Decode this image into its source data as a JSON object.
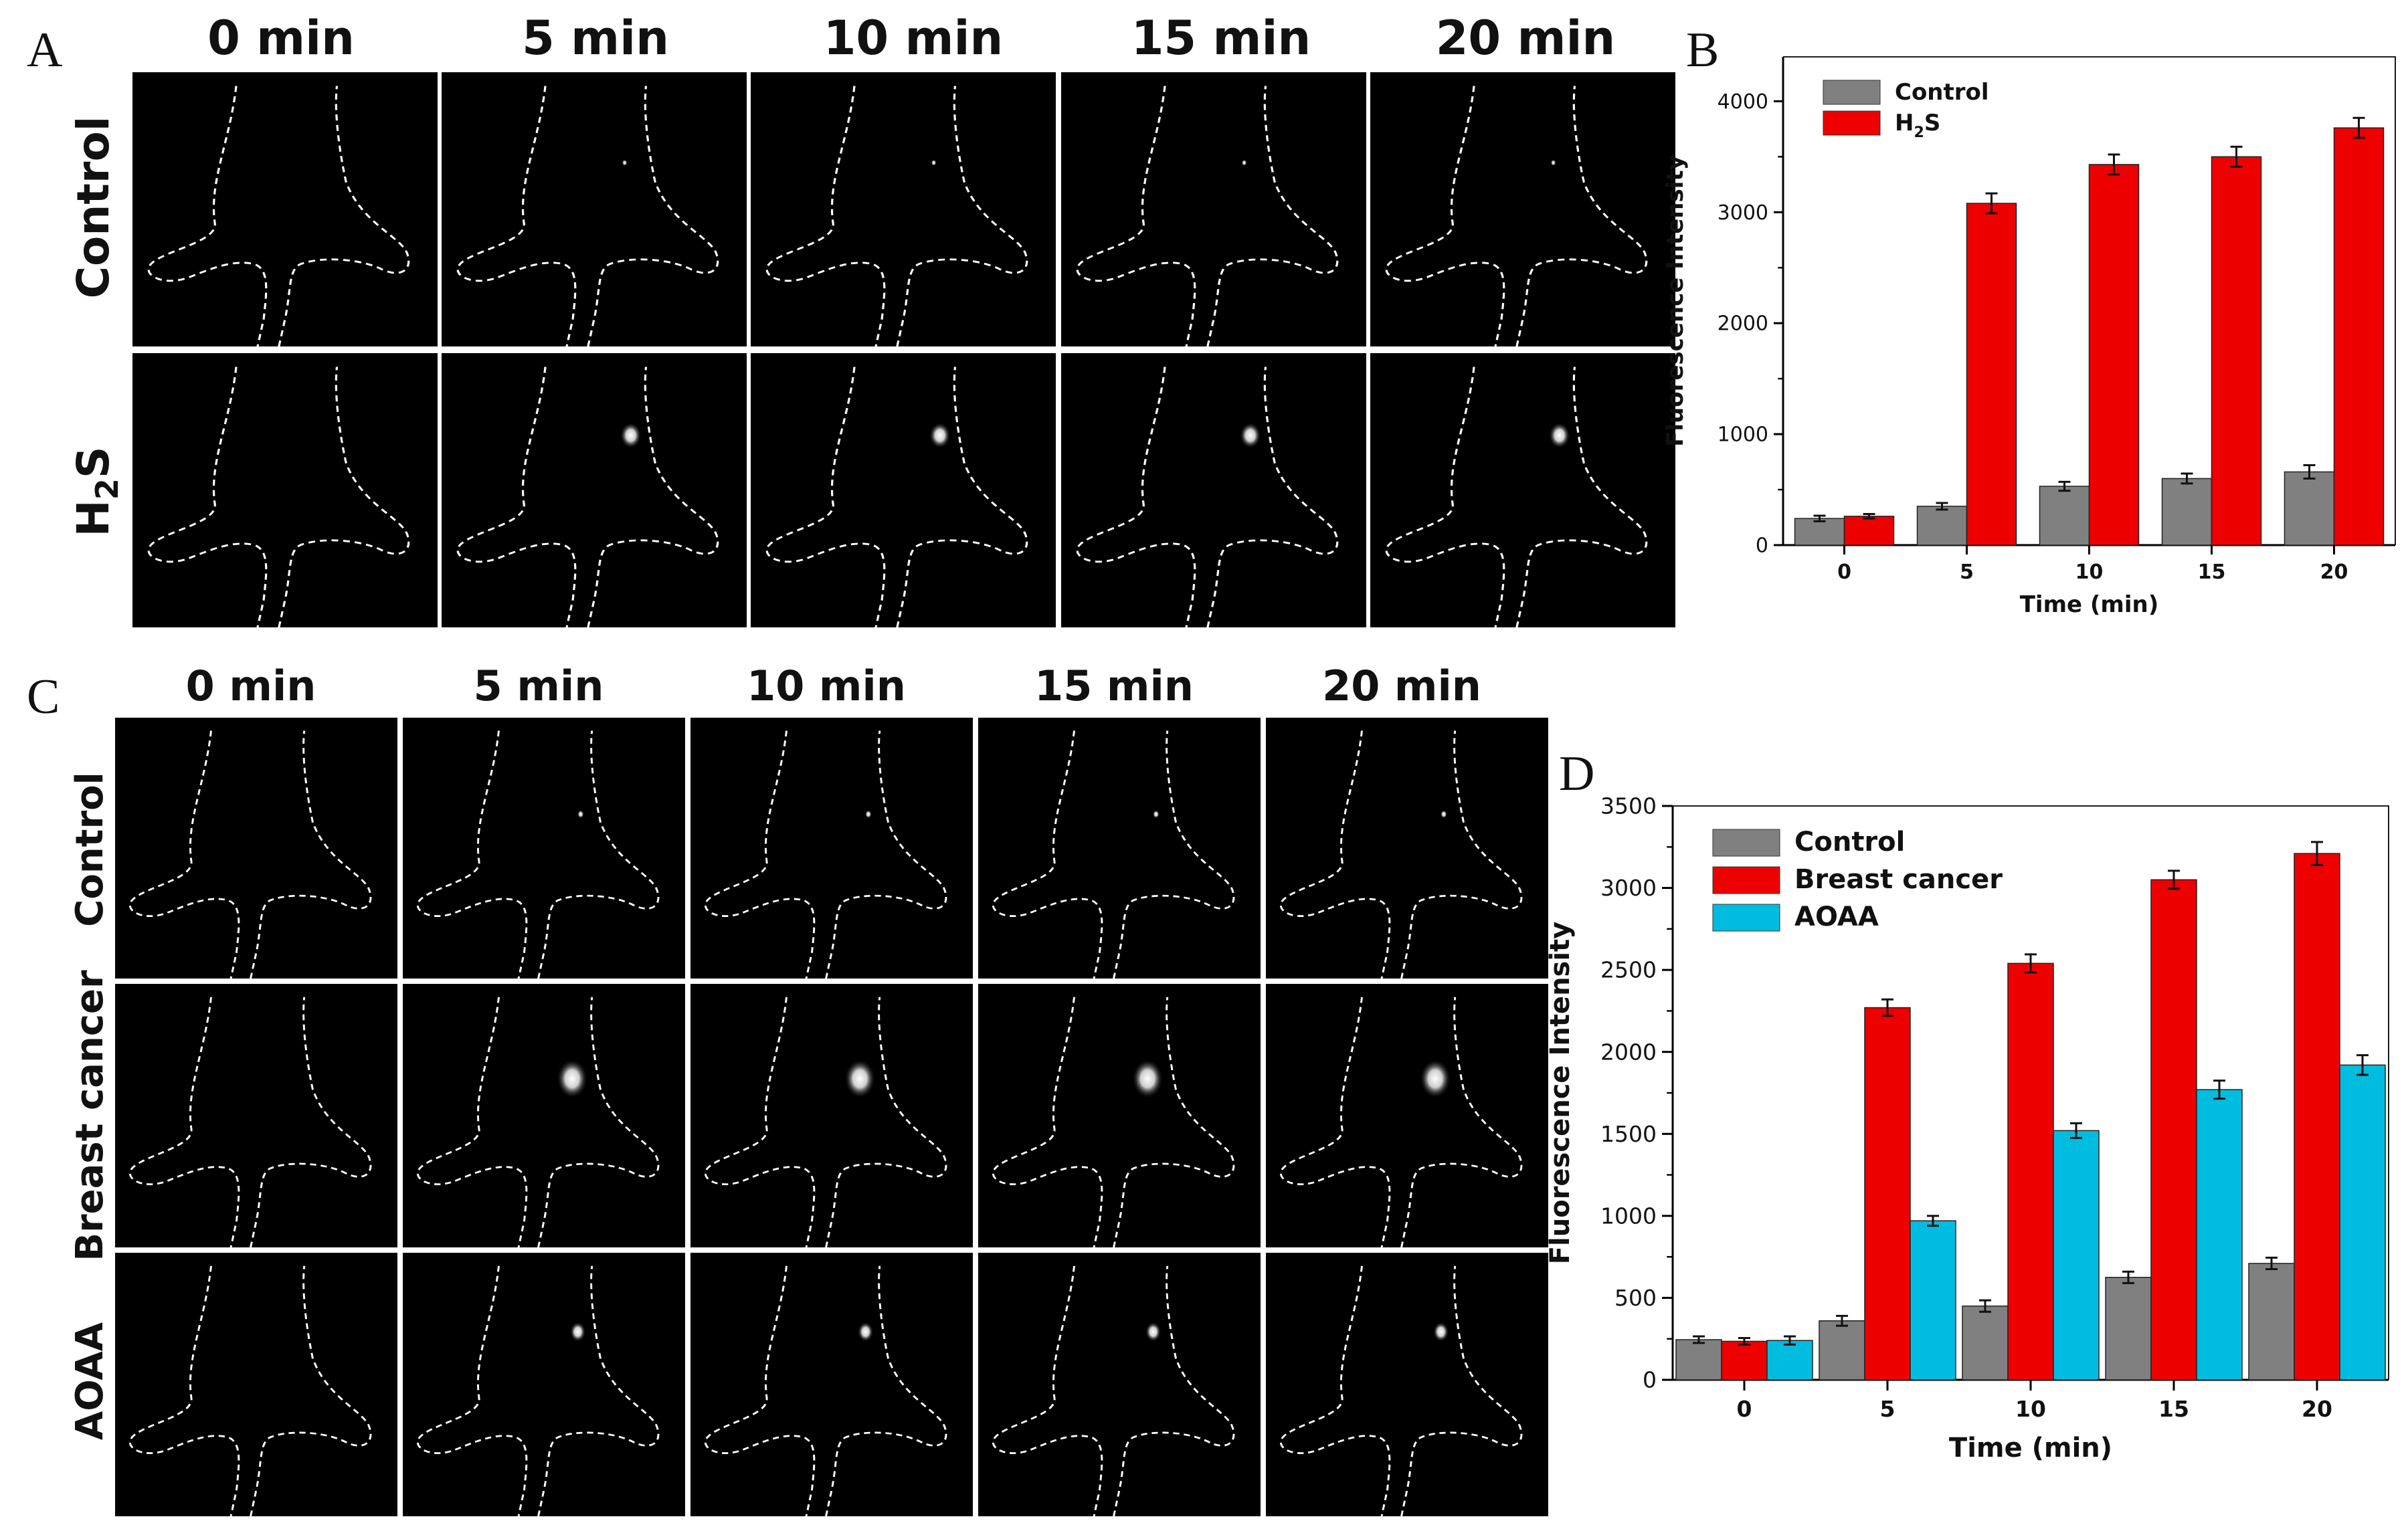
{
  "figure": {
    "panel_letters": [
      "A",
      "B",
      "C",
      "D"
    ],
    "time_headers": [
      "0 min",
      "5 min",
      "10 min",
      "15 min",
      "20 min"
    ],
    "panel_a_rows": [
      {
        "label_main": "Control",
        "label_sub": ""
      },
      {
        "label_main": "H",
        "label_sub": "2",
        "label_tail": "S"
      }
    ],
    "panel_c_rows": [
      "Control",
      "Breast cancer",
      "AOAA"
    ]
  },
  "chart_data": [
    {
      "id": "B",
      "type": "bar",
      "title": "",
      "xlabel": "Time (min)",
      "ylabel": "Fluorescence Intensity",
      "categories": [
        "0",
        "5",
        "10",
        "15",
        "20"
      ],
      "ylim": [
        0,
        4400
      ],
      "yticks": [
        "0",
        "1000",
        "2000",
        "3000",
        "4000"
      ],
      "ytick_values": [
        0,
        1000,
        2000,
        3000,
        4000
      ],
      "legend_position": "top-left",
      "series": [
        {
          "name": "Control",
          "name_main": "Control",
          "name_sub": "",
          "name_tail": "",
          "color": "#808080",
          "values": [
            240,
            350,
            530,
            600,
            660
          ],
          "errors": [
            25,
            30,
            40,
            45,
            60
          ]
        },
        {
          "name": "H2S",
          "name_main": "H",
          "name_sub": "2",
          "name_tail": "S",
          "color": "#ee0000",
          "values": [
            260,
            3080,
            3430,
            3500,
            3760
          ],
          "errors": [
            20,
            90,
            90,
            90,
            90
          ]
        }
      ]
    },
    {
      "id": "D",
      "type": "bar",
      "title": "",
      "xlabel": "Time (min)",
      "ylabel": "Fluorescence Intensity",
      "categories": [
        "0",
        "5",
        "10",
        "15",
        "20"
      ],
      "ylim": [
        0,
        3500
      ],
      "yticks": [
        "0",
        "500",
        "1000",
        "1500",
        "2000",
        "2500",
        "3000",
        "3500"
      ],
      "ytick_values": [
        0,
        500,
        1000,
        1500,
        2000,
        2500,
        3000,
        3500
      ],
      "legend_position": "top-left",
      "series": [
        {
          "name": "Control",
          "name_main": "Control",
          "name_sub": "",
          "name_tail": "",
          "color": "#808080",
          "values": [
            245,
            360,
            450,
            625,
            710
          ],
          "errors": [
            20,
            30,
            35,
            35,
            35
          ]
        },
        {
          "name": "Breast cancer",
          "name_main": "Breast cancer",
          "name_sub": "",
          "name_tail": "",
          "color": "#ee0000",
          "values": [
            235,
            2270,
            2540,
            3050,
            3210
          ],
          "errors": [
            20,
            50,
            55,
            55,
            70
          ]
        },
        {
          "name": "AOAA",
          "name_main": "AOAA",
          "name_sub": "",
          "name_tail": "",
          "color": "#00bde0",
          "values": [
            240,
            970,
            1520,
            1770,
            1920
          ],
          "errors": [
            25,
            30,
            45,
            55,
            60
          ]
        }
      ]
    }
  ]
}
